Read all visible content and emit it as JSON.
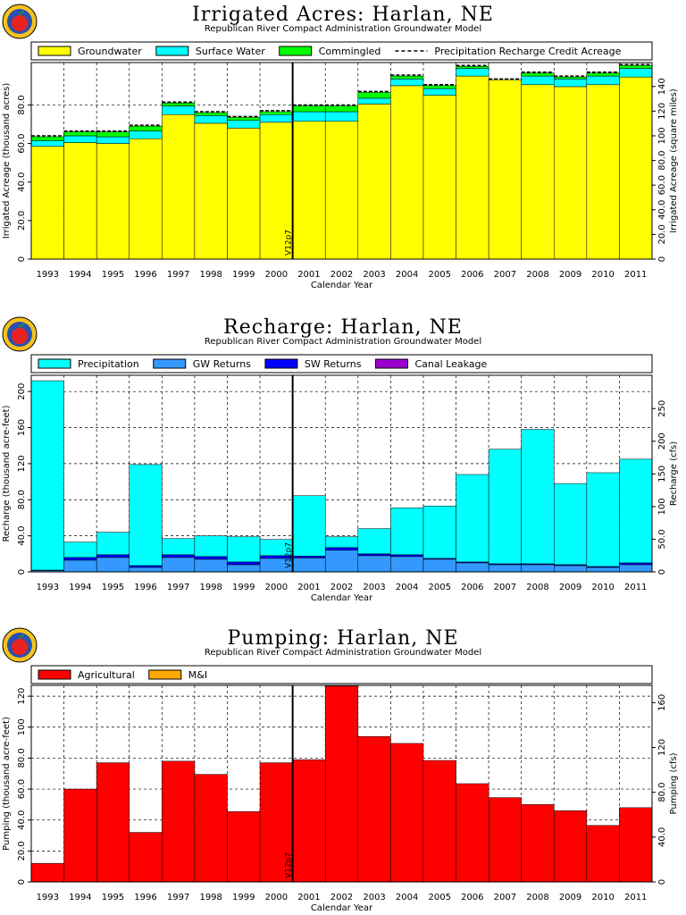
{
  "logo_icon": "apple-seal-icon",
  "common": {
    "subtitle": "Republican River Compact Administration Groundwater Model",
    "xlabel": "Calendar Year",
    "marker_label": "V12p7",
    "marker_after_year": "2000"
  },
  "chart_data": [
    {
      "type": "bar",
      "stacked": true,
      "title": "Irrigated Acres: Harlan, NE",
      "xlabel": "Calendar Year",
      "ylabel": "Irrigated Acreage (thousand acres)",
      "y2label": "Irrigated Acreage (square miles)",
      "ylim": [
        0,
        102
      ],
      "y2lim": [
        0,
        159.4
      ],
      "yticks": [
        0,
        20,
        40,
        60,
        80
      ],
      "ytick_labels": [
        "0",
        "20.0",
        "40.0",
        "60.0",
        "80.0"
      ],
      "y2ticks": [
        0,
        20,
        40,
        60,
        80,
        100,
        120,
        140
      ],
      "y2tick_labels": [
        "0",
        "20.0",
        "40.0",
        "60.0",
        "80.0",
        "100",
        "120",
        "140"
      ],
      "legend_position": "top",
      "grid": true,
      "categories": [
        "1993",
        "1994",
        "1995",
        "1996",
        "1997",
        "1998",
        "1999",
        "2000",
        "2001",
        "2002",
        "2003",
        "2004",
        "2005",
        "2006",
        "2007",
        "2008",
        "2009",
        "2010",
        "2011"
      ],
      "series": [
        {
          "name": "Groundwater",
          "color": "#ffff00",
          "values": [
            58.5,
            60.5,
            60,
            62.5,
            75,
            70.5,
            68,
            71,
            71.5,
            71.5,
            80.5,
            90,
            85,
            95,
            93,
            90.5,
            89.5,
            90.5,
            94.5
          ]
        },
        {
          "name": "Surface Water",
          "color": "#00ffff",
          "values": [
            3,
            3.5,
            3.5,
            4,
            4.5,
            4,
            4,
            4,
            5,
            5,
            3,
            3.5,
            3.5,
            4,
            0,
            4.5,
            4,
            4.5,
            4.5
          ]
        },
        {
          "name": "Commingled",
          "color": "#00ff00",
          "values": [
            2,
            2,
            2.5,
            2.5,
            1.5,
            1.5,
            1.5,
            1.5,
            3,
            3,
            3,
            1.5,
            1.5,
            1,
            0,
            1.5,
            1,
            1.5,
            1.5
          ]
        }
      ],
      "line_series": {
        "name": "Precipitation Recharge Credit Acreage",
        "color": "#000000",
        "style": "dashed",
        "values": [
          64,
          66.5,
          66.5,
          69.5,
          81.5,
          76.5,
          74,
          77,
          80,
          80,
          87,
          95.5,
          90.5,
          100.5,
          93.5,
          97,
          95,
          97,
          101
        ]
      }
    },
    {
      "type": "bar",
      "stacked": true,
      "title": "Recharge: Harlan, NE",
      "xlabel": "Calendar Year",
      "ylabel": "Recharge (thousand acre-feet)",
      "y2label": "Recharge (cfs)",
      "ylim": [
        0,
        218
      ],
      "y2lim": [
        0,
        301
      ],
      "yticks": [
        0,
        40,
        80,
        120,
        160,
        200
      ],
      "ytick_labels": [
        "0",
        "40.0",
        "80.0",
        "120",
        "160",
        "200"
      ],
      "y2ticks": [
        0,
        50,
        100,
        150,
        200,
        250
      ],
      "y2tick_labels": [
        "0",
        "50.0",
        "100",
        "150",
        "200",
        "250"
      ],
      "legend_position": "top",
      "grid": true,
      "categories": [
        "1993",
        "1994",
        "1995",
        "1996",
        "1997",
        "1998",
        "1999",
        "2000",
        "2001",
        "2002",
        "2003",
        "2004",
        "2005",
        "2006",
        "2007",
        "2008",
        "2009",
        "2010",
        "2011"
      ],
      "series": [
        {
          "name": "GW Returns",
          "color": "#3399ff",
          "values": [
            1.5,
            13,
            16,
            5,
            16,
            14,
            8,
            15,
            15.5,
            24,
            18,
            17,
            14,
            10,
            8,
            8,
            7,
            5,
            8
          ]
        },
        {
          "name": "SW Returns",
          "color": "#0000ff",
          "values": [
            0.5,
            3,
            3,
            2,
            3,
            3,
            3,
            3,
            2,
            3,
            2,
            2,
            1,
            1,
            1,
            1,
            1,
            1,
            2
          ]
        },
        {
          "name": "Canal Leakage",
          "color": "#9900cc",
          "values": [
            0,
            0,
            0,
            0,
            0,
            0,
            0,
            0,
            0,
            0,
            0,
            0,
            0,
            0,
            0,
            0,
            0,
            0,
            0
          ]
        },
        {
          "name": "Precipitation",
          "color": "#00ffff",
          "values": [
            210,
            17,
            25,
            112,
            18,
            23,
            28,
            18,
            67,
            12,
            28,
            52,
            58,
            97,
            127,
            149,
            90,
            104,
            115
          ]
        }
      ]
    },
    {
      "type": "bar",
      "stacked": true,
      "title": "Pumping: Harlan, NE",
      "xlabel": "Calendar Year",
      "ylabel": "Pumping (thousand acre-feet)",
      "y2label": "Pumping (cfs)",
      "ylim": [
        0,
        127
      ],
      "y2lim": [
        0,
        175.4
      ],
      "yticks": [
        0,
        20,
        40,
        60,
        80,
        100,
        120
      ],
      "ytick_labels": [
        "0",
        "20.0",
        "40.0",
        "60.0",
        "80.0",
        "100",
        "120"
      ],
      "y2ticks": [
        0,
        40,
        80,
        120,
        160
      ],
      "y2tick_labels": [
        "0",
        "40.0",
        "80.0",
        "120",
        "160"
      ],
      "legend_position": "top",
      "grid": true,
      "categories": [
        "1993",
        "1994",
        "1995",
        "1996",
        "1997",
        "1998",
        "1999",
        "2000",
        "2001",
        "2002",
        "2003",
        "2004",
        "2005",
        "2006",
        "2007",
        "2008",
        "2009",
        "2010",
        "2011"
      ],
      "series": [
        {
          "name": "Agricultural",
          "color": "#ff0000",
          "values": [
            12,
            60,
            77,
            32,
            78,
            69.5,
            45.5,
            77,
            79,
            126.5,
            94,
            89.5,
            78.5,
            63.5,
            54.5,
            50,
            46,
            36.5,
            48
          ]
        },
        {
          "name": "M&I",
          "color": "#ffaa00",
          "values": [
            0,
            0,
            0,
            0,
            0,
            0,
            0,
            0,
            0,
            0,
            0,
            0,
            0,
            0,
            0,
            0,
            0,
            0,
            0
          ]
        }
      ]
    }
  ]
}
